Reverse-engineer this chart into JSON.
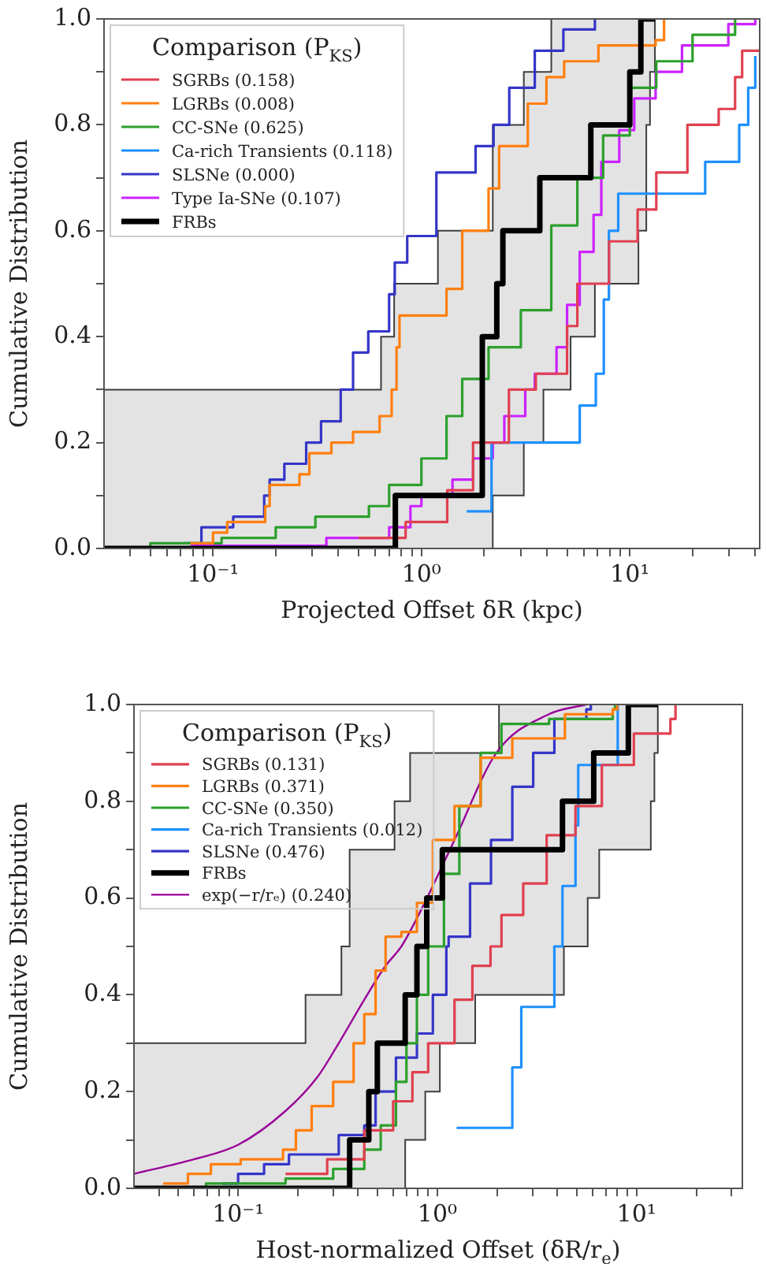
{
  "chart_data": [
    {
      "type": "step",
      "xlabel": "Projected Offset δR (kpc)",
      "ylabel": "Cumulative Distribution",
      "legend_title": "Comparison (P$_{KS}$)",
      "legend": "top left",
      "log": "x",
      "marker": "none",
      "xlim": [
        0.03,
        42
      ],
      "ylim": [
        0,
        1
      ],
      "xticks": [
        {
          "value": 0.04,
          "label": null
        },
        {
          "value": 0.05,
          "label": null
        },
        {
          "value": 0.06,
          "label": null
        },
        {
          "value": 0.07,
          "label": null
        },
        {
          "value": 0.08,
          "label": null
        },
        {
          "value": 0.09,
          "label": null
        },
        {
          "value": 0.1,
          "label": "10⁻¹"
        },
        {
          "value": 0.2,
          "label": null
        },
        {
          "value": 0.3,
          "label": null
        },
        {
          "value": 0.4,
          "label": null
        },
        {
          "value": 0.5,
          "label": null
        },
        {
          "value": 0.6,
          "label": null
        },
        {
          "value": 0.7,
          "label": null
        },
        {
          "value": 0.8,
          "label": null
        },
        {
          "value": 0.9,
          "label": null
        },
        {
          "value": 1,
          "label": "10⁰"
        },
        {
          "value": 2,
          "label": null
        },
        {
          "value": 3,
          "label": null
        },
        {
          "value": 4,
          "label": null
        },
        {
          "value": 5,
          "label": null
        },
        {
          "value": 6,
          "label": null
        },
        {
          "value": 7,
          "label": null
        },
        {
          "value": 8,
          "label": null
        },
        {
          "value": 9,
          "label": null
        },
        {
          "value": 10,
          "label": "10¹"
        },
        {
          "value": 20,
          "label": null
        },
        {
          "value": 30,
          "label": null
        },
        {
          "value": 40,
          "label": null
        }
      ],
      "yticks": [
        {
          "value": 0,
          "label": "0.0"
        },
        {
          "value": 0.1,
          "label": null
        },
        {
          "value": 0.2,
          "label": "0.2"
        },
        {
          "value": 0.3,
          "label": null
        },
        {
          "value": 0.4,
          "label": "0.4"
        },
        {
          "value": 0.5,
          "label": null
        },
        {
          "value": 0.6,
          "label": "0.6"
        },
        {
          "value": 0.7,
          "label": null
        },
        {
          "value": 0.8,
          "label": "0.8"
        },
        {
          "value": 0.9,
          "label": null
        },
        {
          "value": 1,
          "label": "1.0"
        }
      ],
      "series": [
        {
          "name": "SGRBs (0.158)",
          "color": "#e0404f",
          "x": [
            0.5,
            0.84,
            1.33,
            1.77,
            2.63,
            3.54,
            5.0,
            5.6,
            7.95,
            10.9,
            13.4,
            18.9,
            26.7,
            32,
            34.6,
            42
          ],
          "values": [
            0.02,
            0.05,
            0.11,
            0.2,
            0.3,
            0.33,
            0.42,
            0.5,
            0.58,
            0.64,
            0.71,
            0.8,
            0.83,
            0.89,
            0.94,
            0.94
          ]
        },
        {
          "name": "LGRBs (0.008)",
          "color": "#ff7f0e",
          "x": [
            0.078,
            0.1,
            0.117,
            0.178,
            0.187,
            0.26,
            0.29,
            0.37,
            0.47,
            0.63,
            0.72,
            0.76,
            0.785,
            1.32,
            1.57,
            2.1,
            2.36,
            3.24,
            3.98,
            4.84,
            7.07,
            13.3,
            14.6
          ],
          "values": [
            0.01,
            0.03,
            0.05,
            0.08,
            0.12,
            0.14,
            0.18,
            0.2,
            0.22,
            0.25,
            0.3,
            0.38,
            0.44,
            0.49,
            0.6,
            0.68,
            0.76,
            0.84,
            0.89,
            0.92,
            0.95,
            0.96,
            1.0
          ]
        },
        {
          "name": "CC-SNe (0.625)",
          "color": "#2ca02c",
          "x": [
            0.03,
            0.05,
            0.11,
            0.2,
            0.31,
            0.56,
            0.7,
            1.0,
            1.32,
            1.57,
            2.1,
            3.0,
            4.2,
            5.6,
            7.45,
            10,
            13.4,
            20,
            32
          ],
          "values": [
            0.002,
            0.01,
            0.02,
            0.04,
            0.06,
            0.08,
            0.12,
            0.17,
            0.25,
            0.32,
            0.38,
            0.45,
            0.61,
            0.7,
            0.78,
            0.87,
            0.92,
            0.97,
            1.0
          ]
        },
        {
          "name": "Ca-rich Transients (0.118)",
          "color": "#1e90ff",
          "x": [
            1.65,
            2.17,
            5.75,
            6.87,
            7.5,
            7.94,
            8.8,
            23,
            33.5,
            37,
            40
          ],
          "values": [
            0.07,
            0.2,
            0.27,
            0.33,
            0.47,
            0.6,
            0.67,
            0.73,
            0.8,
            0.87,
            0.93
          ]
        },
        {
          "name": "SLSNe (0.000)",
          "color": "#3535c8",
          "x": [
            0.072,
            0.088,
            0.125,
            0.176,
            0.187,
            0.22,
            0.28,
            0.33,
            0.41,
            0.47,
            0.556,
            0.7,
            0.745,
            0.855,
            1.18,
            1.82,
            2.22,
            2.64,
            3.5,
            4.8,
            6.8
          ],
          "values": [
            0.01,
            0.04,
            0.06,
            0.1,
            0.13,
            0.16,
            0.2,
            0.24,
            0.3,
            0.37,
            0.41,
            0.48,
            0.54,
            0.59,
            0.71,
            0.76,
            0.8,
            0.87,
            0.94,
            0.98,
            1.0
          ]
        },
        {
          "name": "Type Ia-SNe (0.107)",
          "color": "#cc22ff",
          "x": [
            0.078,
            0.35,
            0.7,
            0.886,
            1.0,
            1.41,
            1.77,
            2.2,
            2.5,
            3.15,
            3.5,
            4.45,
            5.0,
            5.75,
            6.7,
            7.3,
            8.9,
            10.5,
            13.3,
            17.8,
            29.7,
            40
          ],
          "values": [
            0.005,
            0.02,
            0.04,
            0.08,
            0.1,
            0.13,
            0.17,
            0.2,
            0.25,
            0.3,
            0.33,
            0.38,
            0.46,
            0.56,
            0.63,
            0.73,
            0.79,
            0.85,
            0.9,
            0.95,
            0.99,
            1.0
          ]
        },
        {
          "name": "FRBs",
          "color": "#000000",
          "x": [
            0.03,
            0.64,
            0.74,
            0.75,
            1.2,
            1.96,
            2.2,
            2.3,
            2.46,
            3.1,
            3.7,
            3.85,
            4.2,
            5.2,
            6.5,
            6.8,
            10,
            11,
            11.3,
            12,
            12.5,
            13.2
          ],
          "values": [
            0,
            0,
            0,
            0.1,
            0.1,
            0.4,
            0.4,
            0.5,
            0.6,
            0.6,
            0.7,
            0.7,
            0.7,
            0.7,
            0.8,
            0.8,
            0.9,
            0.9,
            1.0,
            1.0,
            1.0,
            1.0
          ],
          "lower": [
            0,
            0,
            0,
            0,
            0,
            0,
            0.1,
            0.1,
            0.1,
            0.2,
            0.2,
            0.3,
            0.3,
            0.4,
            0.4,
            0.5,
            0.5,
            0.6,
            0.6,
            0.8,
            0.9,
            1.0
          ],
          "upper": [
            0.3,
            0.4,
            0.5,
            0.5,
            0.6,
            0.6,
            0.8,
            0.8,
            0.8,
            0.9,
            0.9,
            0.9,
            1.0,
            1.0,
            1.0,
            1.0,
            1.0,
            1.0,
            1.0,
            1.0,
            1.0,
            1.0
          ]
        }
      ]
    },
    {
      "type": "step",
      "xlabel": "Host-normalized Offset (δR/r$_{e}$)",
      "ylabel": "Cumulative Distribution",
      "legend_title": "Comparison (P$_{KS}$)",
      "legend": "top left",
      "log": "x",
      "marker": "none",
      "xlim": [
        0.03,
        34
      ],
      "ylim": [
        0,
        1
      ],
      "xticks": [
        {
          "value": 0.04,
          "label": null
        },
        {
          "value": 0.05,
          "label": null
        },
        {
          "value": 0.06,
          "label": null
        },
        {
          "value": 0.07,
          "label": null
        },
        {
          "value": 0.08,
          "label": null
        },
        {
          "value": 0.09,
          "label": null
        },
        {
          "value": 0.1,
          "label": "10⁻¹"
        },
        {
          "value": 0.2,
          "label": null
        },
        {
          "value": 0.3,
          "label": null
        },
        {
          "value": 0.4,
          "label": null
        },
        {
          "value": 0.5,
          "label": null
        },
        {
          "value": 0.6,
          "label": null
        },
        {
          "value": 0.7,
          "label": null
        },
        {
          "value": 0.8,
          "label": null
        },
        {
          "value": 0.9,
          "label": null
        },
        {
          "value": 1,
          "label": "10⁰"
        },
        {
          "value": 2,
          "label": null
        },
        {
          "value": 3,
          "label": null
        },
        {
          "value": 4,
          "label": null
        },
        {
          "value": 5,
          "label": null
        },
        {
          "value": 6,
          "label": null
        },
        {
          "value": 7,
          "label": null
        },
        {
          "value": 8,
          "label": null
        },
        {
          "value": 9,
          "label": null
        },
        {
          "value": 10,
          "label": "10¹"
        },
        {
          "value": 20,
          "label": null
        },
        {
          "value": 30,
          "label": null
        }
      ],
      "yticks": [
        {
          "value": 0,
          "label": "0.0"
        },
        {
          "value": 0.1,
          "label": null
        },
        {
          "value": 0.2,
          "label": "0.2"
        },
        {
          "value": 0.3,
          "label": null
        },
        {
          "value": 0.4,
          "label": "0.4"
        },
        {
          "value": 0.5,
          "label": null
        },
        {
          "value": 0.6,
          "label": "0.6"
        },
        {
          "value": 0.7,
          "label": null
        },
        {
          "value": 0.8,
          "label": "0.8"
        },
        {
          "value": 0.9,
          "label": null
        },
        {
          "value": 1,
          "label": "1.0"
        }
      ],
      "series": [
        {
          "name": "SGRBs (0.131)",
          "color": "#e0404f",
          "x": [
            0.173,
            0.28,
            0.43,
            0.6,
            0.75,
            0.9,
            1.22,
            1.5,
            1.85,
            2.1,
            2.7,
            3.54,
            4.94,
            6.7,
            9.7,
            14.8,
            15.7
          ],
          "values": [
            0.03,
            0.06,
            0.12,
            0.18,
            0.24,
            0.3,
            0.39,
            0.46,
            0.5,
            0.565,
            0.63,
            0.73,
            0.79,
            0.875,
            0.94,
            0.97,
            1.0
          ]
        },
        {
          "name": "LGRBs (0.371)",
          "color": "#ff7f0e",
          "x": [
            0.042,
            0.056,
            0.073,
            0.103,
            0.168,
            0.195,
            0.234,
            0.3,
            0.38,
            0.43,
            0.49,
            0.55,
            0.66,
            0.79,
            0.95,
            1.22,
            1.65,
            2.38,
            4.37,
            7.6,
            8.0
          ],
          "values": [
            0.01,
            0.03,
            0.05,
            0.06,
            0.08,
            0.12,
            0.17,
            0.22,
            0.3,
            0.36,
            0.45,
            0.52,
            0.53,
            0.59,
            0.72,
            0.79,
            0.89,
            0.93,
            0.98,
            0.99,
            1.0
          ]
        },
        {
          "name": "CC-SNe (0.350)",
          "color": "#2ca02c",
          "x": [
            0.03,
            0.069,
            0.173,
            0.3,
            0.43,
            0.52,
            0.62,
            0.7,
            0.79,
            0.9,
            1.08,
            1.29,
            1.65,
            2.1,
            3.64,
            7.6,
            7.8
          ],
          "values": [
            0.002,
            0.01,
            0.02,
            0.04,
            0.08,
            0.13,
            0.22,
            0.3,
            0.4,
            0.5,
            0.65,
            0.79,
            0.9,
            0.96,
            0.97,
            0.99,
            1.0
          ]
        },
        {
          "name": "Ca-rich Transients (0.012)",
          "color": "#1e90ff",
          "x": [
            1.25,
            2.38,
            2.64,
            3.87,
            4.25,
            4.94,
            5.1,
            8.05
          ],
          "values": [
            0.125,
            0.25,
            0.375,
            0.5,
            0.625,
            0.75,
            0.875,
            1.0
          ]
        },
        {
          "name": "SLSNe (0.476)",
          "color": "#3535c8",
          "x": [
            0.083,
            0.1,
            0.135,
            0.18,
            0.32,
            0.43,
            0.49,
            0.62,
            0.79,
            0.95,
            1.11,
            1.14,
            1.46,
            1.86,
            2.38,
            3.03,
            3.87,
            5.6,
            5.9
          ],
          "values": [
            0.01,
            0.03,
            0.05,
            0.07,
            0.11,
            0.13,
            0.2,
            0.27,
            0.32,
            0.4,
            0.5,
            0.52,
            0.63,
            0.72,
            0.83,
            0.9,
            0.97,
            0.99,
            1.0
          ]
        },
        {
          "name": "FRBs",
          "color": "#000000",
          "x": [
            0.03,
            0.218,
            0.33,
            0.363,
            0.453,
            0.5,
            0.61,
            0.69,
            0.73,
            0.79,
            0.87,
            0.885,
            1.03,
            1.06,
            1.55,
            2.04,
            4.25,
            4.32,
            5.69,
            6.1,
            6.5,
            9.1,
            11.8,
            12.3,
            12.8
          ],
          "values": [
            0,
            0,
            0,
            0.1,
            0.2,
            0.3,
            0.3,
            0.4,
            0.4,
            0.5,
            0.5,
            0.6,
            0.6,
            0.7,
            0.7,
            0.7,
            0.8,
            0.8,
            0.8,
            0.9,
            0.9,
            1.0,
            1.0,
            1.0,
            1.0
          ],
          "lower": [
            0,
            0,
            0,
            0,
            0,
            0,
            0,
            0.1,
            0.1,
            0.1,
            0.2,
            0.2,
            0.3,
            0.3,
            0.4,
            0.4,
            0.4,
            0.5,
            0.6,
            0.6,
            0.7,
            0.7,
            0.8,
            0.9,
            1.0
          ],
          "upper": [
            0.3,
            0.4,
            0.5,
            0.7,
            0.7,
            0.7,
            0.8,
            0.8,
            0.9,
            0.9,
            0.9,
            0.9,
            0.9,
            0.9,
            0.9,
            1.0,
            1.0,
            1.0,
            1.0,
            1.0,
            1.0,
            1.0,
            1.0,
            1.0,
            1.0
          ]
        },
        {
          "name": "exp(−r/rₑ) (0.240)",
          "color": "#990099",
          "type": "line",
          "x": [
            0.03,
            0.06,
            0.1,
            0.173,
            0.25,
            0.32,
            0.43,
            0.55,
            0.66,
            0.84,
            1.22,
            1.98,
            3.64,
            5.6
          ],
          "values": [
            0.03,
            0.06,
            0.09,
            0.16,
            0.23,
            0.3,
            0.39,
            0.46,
            0.5,
            0.58,
            0.72,
            0.9,
            0.98,
            1.0
          ]
        }
      ]
    }
  ]
}
